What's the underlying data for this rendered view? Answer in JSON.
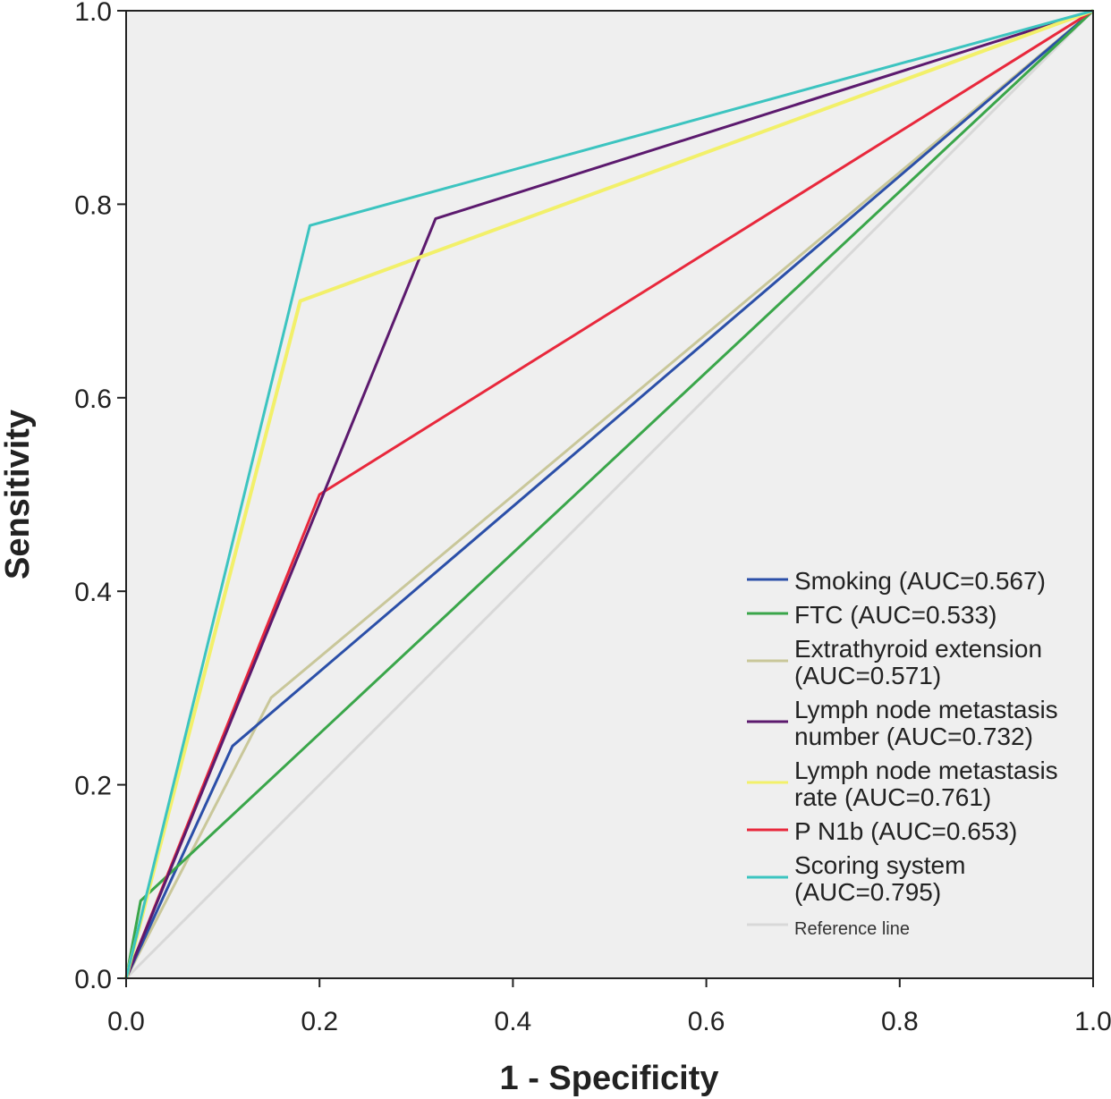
{
  "chart_data": {
    "type": "line",
    "title": "",
    "xlabel": "1 - Specificity",
    "ylabel": "Sensitivity",
    "xlim": [
      0.0,
      1.0
    ],
    "ylim": [
      0.0,
      1.0
    ],
    "xticks": [
      "0.0",
      "0.2",
      "0.4",
      "0.6",
      "0.8",
      "1.0"
    ],
    "yticks": [
      "0.0",
      "0.2",
      "0.4",
      "0.6",
      "0.8",
      "1.0"
    ],
    "grid": false,
    "legend_position": "bottom-right",
    "background_color": "#efefef",
    "series": [
      {
        "name": "Reference line",
        "color": "#d8d8d8",
        "points": [
          [
            0.0,
            0.0
          ],
          [
            1.0,
            1.0
          ]
        ]
      },
      {
        "name": "Extrathyroid extension (AUC=0.571)",
        "color": "#c9c79a",
        "points": [
          [
            0.0,
            0.0
          ],
          [
            0.15,
            0.29
          ],
          [
            1.0,
            1.0
          ]
        ]
      },
      {
        "name": "Smoking (AUC=0.567)",
        "color": "#2b4fa8",
        "points": [
          [
            0.0,
            0.0
          ],
          [
            0.11,
            0.24
          ],
          [
            1.0,
            1.0
          ]
        ]
      },
      {
        "name": "FTC (AUC=0.533)",
        "color": "#3aa64a",
        "points": [
          [
            0.0,
            0.0
          ],
          [
            0.015,
            0.08
          ],
          [
            1.0,
            1.0
          ]
        ]
      },
      {
        "name": "P N1b (AUC=0.653)",
        "color": "#e8283c",
        "points": [
          [
            0.0,
            0.0
          ],
          [
            0.2,
            0.5
          ],
          [
            1.0,
            1.0
          ]
        ]
      },
      {
        "name": "Lymph node metastasis number (AUC=0.732)",
        "color": "#5c1a6e",
        "points": [
          [
            0.0,
            0.0
          ],
          [
            0.32,
            0.785
          ],
          [
            1.0,
            1.0
          ]
        ]
      },
      {
        "name": "Lymph node metastasis rate (AUC=0.761)",
        "color": "#f2f06a",
        "points": [
          [
            0.0,
            0.0
          ],
          [
            0.18,
            0.7
          ],
          [
            1.0,
            1.0
          ]
        ]
      },
      {
        "name": "Scoring system (AUC=0.795)",
        "color": "#3cc4c0",
        "points": [
          [
            0.0,
            0.0
          ],
          [
            0.19,
            0.778
          ],
          [
            1.0,
            1.0
          ]
        ]
      }
    ],
    "legend": [
      {
        "color": "#2b4fa8",
        "lines": [
          "Smoking (AUC=0.567)"
        ]
      },
      {
        "color": "#3aa64a",
        "lines": [
          "FTC (AUC=0.533)"
        ]
      },
      {
        "color": "#c9c79a",
        "lines": [
          "Extrathyroid extension",
          "(AUC=0.571)"
        ]
      },
      {
        "color": "#5c1a6e",
        "lines": [
          "Lymph node metastasis",
          "number (AUC=0.732)"
        ]
      },
      {
        "color": "#f2f06a",
        "lines": [
          "Lymph node metastasis",
          "rate (AUC=0.761)"
        ]
      },
      {
        "color": "#e8283c",
        "lines": [
          "P N1b (AUC=0.653)"
        ]
      },
      {
        "color": "#3cc4c0",
        "lines": [
          "Scoring system",
          "(AUC=0.795)"
        ]
      },
      {
        "color": "#d8d8d8",
        "lines": [
          "Reference line"
        ],
        "small": true
      }
    ]
  }
}
